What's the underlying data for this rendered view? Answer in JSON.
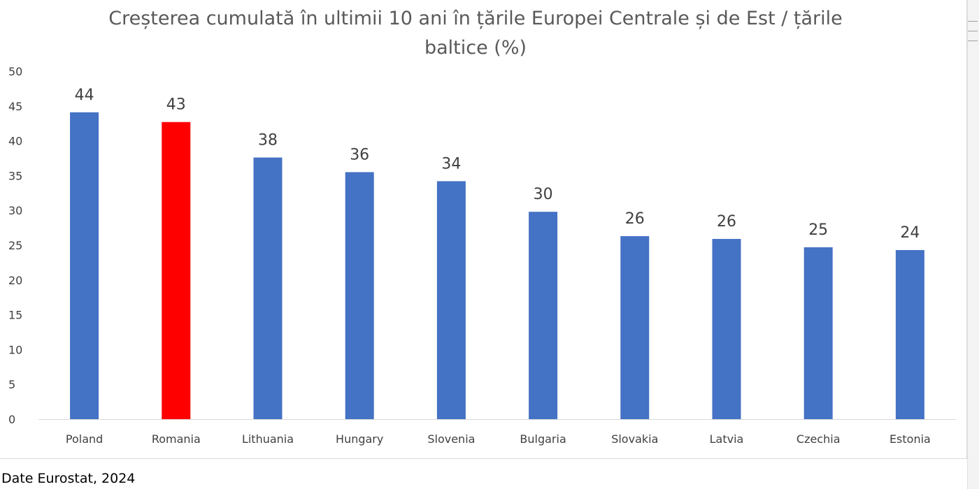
{
  "chart_data": {
    "type": "bar",
    "title": "Creșterea cumulată în ultimii 10 ani în țările Europei Centrale și de Est / țările baltice (%)",
    "categories": [
      "Poland",
      "Romania",
      "Lithuania",
      "Hungary",
      "Slovenia",
      "Bulgaria",
      "Slovakia",
      "Latvia",
      "Czechia",
      "Estonia"
    ],
    "values": [
      44.1,
      42.7,
      37.6,
      35.5,
      34.2,
      29.8,
      26.3,
      25.9,
      24.7,
      24.3
    ],
    "data_labels": [
      "44",
      "43",
      "38",
      "36",
      "34",
      "30",
      "26",
      "26",
      "25",
      "24"
    ],
    "ylim": [
      0,
      50
    ],
    "yticks": [
      0,
      5,
      10,
      15,
      20,
      25,
      30,
      35,
      40,
      45,
      50
    ],
    "grid": false,
    "legend": "none",
    "colors": {
      "default_bar": "#4472c4",
      "highlight_bar": "#ff0000",
      "highlight_category": "Romania"
    }
  },
  "footer": {
    "source": "Date Eurostat, 2024"
  }
}
